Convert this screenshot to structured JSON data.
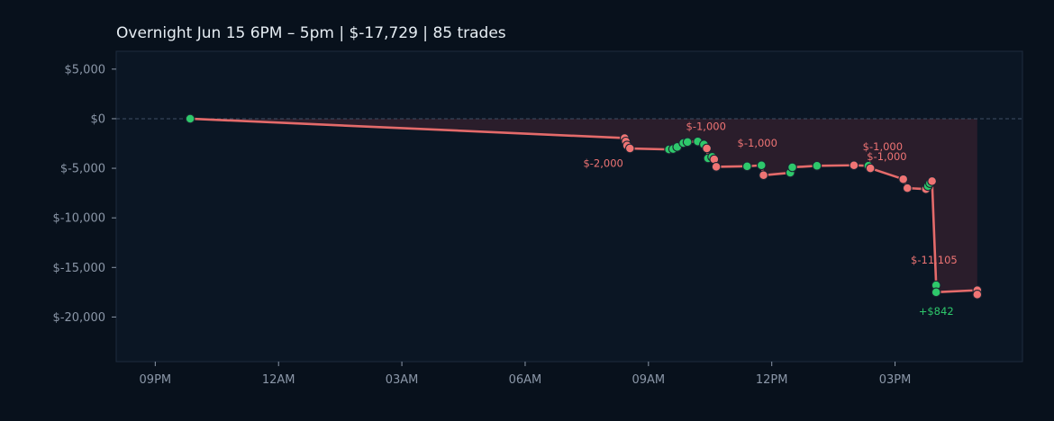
{
  "chart_data": {
    "type": "line",
    "title": "Overnight  Jun 15 6PM – 5pm  |  $-17,729  |  85 trades",
    "xlabel": "",
    "ylabel": "",
    "x_unit": "hours since 12AM Jun 16 (negative = Jun 15 evening)",
    "xlim": [
      -3.95,
      18.1
    ],
    "ylim": [
      -24500,
      6800
    ],
    "y_ticks": [
      5000,
      0,
      -5000,
      -10000,
      -15000,
      -20000
    ],
    "y_tick_labels": [
      "$5,000",
      "$0",
      "$-5,000",
      "$-10,000",
      "$-15,000",
      "$-20,000"
    ],
    "x_ticks": [
      -3,
      0,
      3,
      6,
      9,
      12,
      15
    ],
    "x_tick_labels": [
      "09PM",
      "12AM",
      "03AM",
      "06AM",
      "09AM",
      "12PM",
      "03PM"
    ],
    "grid": false,
    "zero_line": true,
    "colors": {
      "line": "#e46a6a",
      "win": "#2ec86b",
      "loss": "#ef7474",
      "fill": "#2c1e2c",
      "background": "#0b1624",
      "page": "#08111c"
    },
    "series": [
      {
        "points": [
          {
            "x": -2.15,
            "y": 0,
            "r": "win"
          },
          {
            "x": 8.42,
            "y": -1950,
            "r": "loss"
          },
          {
            "x": 8.45,
            "y": -2300,
            "r": "loss"
          },
          {
            "x": 8.48,
            "y": -2700,
            "r": "loss"
          },
          {
            "x": 8.55,
            "y": -3000,
            "r": "loss"
          },
          {
            "x": 9.5,
            "y": -3100,
            "r": "win"
          },
          {
            "x": 9.6,
            "y": -3050,
            "r": "win"
          },
          {
            "x": 9.7,
            "y": -2850,
            "r": "win"
          },
          {
            "x": 9.85,
            "y": -2450,
            "r": "win"
          },
          {
            "x": 9.95,
            "y": -2350,
            "r": "win"
          },
          {
            "x": 10.2,
            "y": -2300,
            "r": "win"
          },
          {
            "x": 10.35,
            "y": -2600,
            "r": "win"
          },
          {
            "x": 10.42,
            "y": -3000,
            "r": "loss"
          },
          {
            "x": 10.45,
            "y": -4000,
            "r": "win"
          },
          {
            "x": 10.55,
            "y": -3850,
            "r": "win"
          },
          {
            "x": 10.6,
            "y": -4100,
            "r": "loss"
          },
          {
            "x": 10.65,
            "y": -4850,
            "r": "loss"
          },
          {
            "x": 11.4,
            "y": -4800,
            "r": "win"
          },
          {
            "x": 11.75,
            "y": -4700,
            "r": "win"
          },
          {
            "x": 11.8,
            "y": -5700,
            "r": "loss"
          },
          {
            "x": 12.45,
            "y": -5450,
            "r": "win"
          },
          {
            "x": 12.5,
            "y": -4900,
            "r": "win"
          },
          {
            "x": 13.1,
            "y": -4750,
            "r": "win"
          },
          {
            "x": 14.0,
            "y": -4700,
            "r": "loss"
          },
          {
            "x": 14.35,
            "y": -4750,
            "r": "win"
          },
          {
            "x": 14.4,
            "y": -5000,
            "r": "loss"
          },
          {
            "x": 15.2,
            "y": -6100,
            "r": "loss"
          },
          {
            "x": 15.3,
            "y": -7000,
            "r": "loss"
          },
          {
            "x": 15.75,
            "y": -7100,
            "r": "loss"
          },
          {
            "x": 15.8,
            "y": -6800,
            "r": "win"
          },
          {
            "x": 15.85,
            "y": -6500,
            "r": "win"
          },
          {
            "x": 15.9,
            "y": -6300,
            "r": "loss"
          },
          {
            "x": 16.0,
            "y": -16800,
            "r": "win"
          },
          {
            "x": 16.0,
            "y": -17500,
            "r": "win"
          },
          {
            "x": 17.0,
            "y": -17300,
            "r": "loss"
          },
          {
            "x": 17.0,
            "y": -17729,
            "r": "loss"
          }
        ]
      }
    ],
    "annotations": [
      {
        "text": "$-2,000",
        "x": 7.9,
        "y": -4850,
        "color": "#ef7474"
      },
      {
        "text": "$-1,000",
        "x": 10.4,
        "y": -1150,
        "color": "#ef7474"
      },
      {
        "text": "$-1,000",
        "x": 11.65,
        "y": -2800,
        "color": "#ef7474"
      },
      {
        "text": "$-1,000",
        "x": 14.7,
        "y": -3200,
        "color": "#ef7474"
      },
      {
        "text": "$-1,000",
        "x": 14.8,
        "y": -4200,
        "color": "#ef7474"
      },
      {
        "text": "$-11,105",
        "x": 15.95,
        "y": -14600,
        "color": "#ef7474"
      },
      {
        "text": "+$842",
        "x": 16.0,
        "y": -19800,
        "color": "#2ec86b"
      }
    ]
  }
}
